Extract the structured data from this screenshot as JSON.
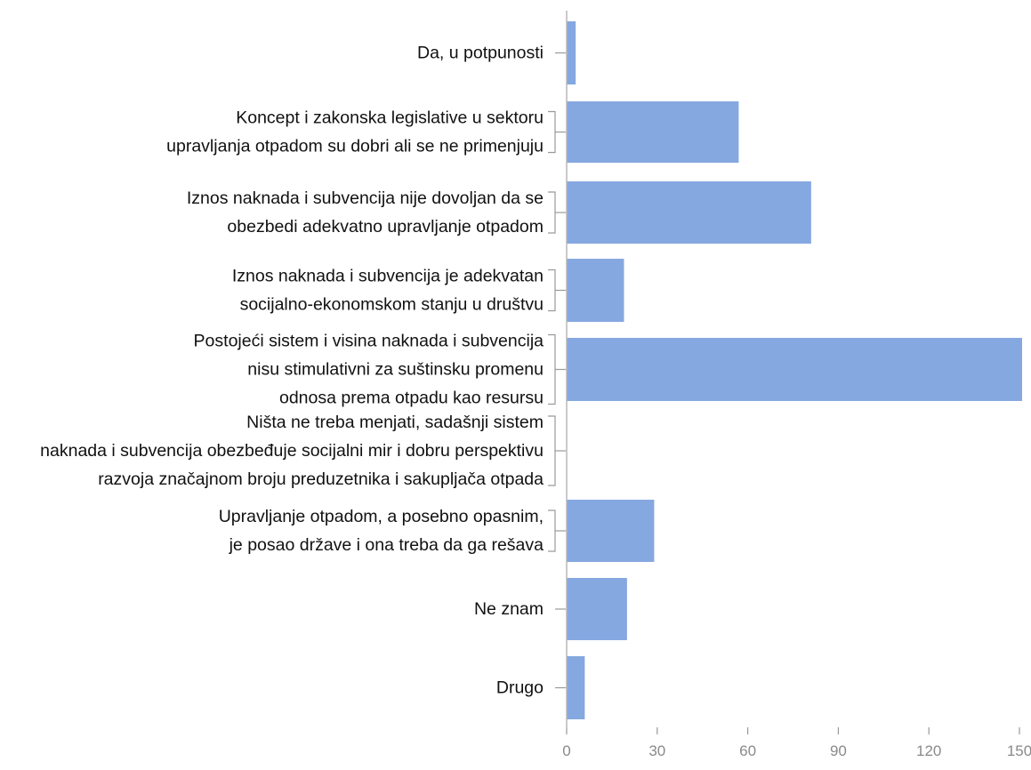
{
  "chart_data": {
    "type": "bar",
    "orientation": "horizontal",
    "title": "",
    "xlabel": "",
    "ylabel": "",
    "xlim": [
      0,
      150
    ],
    "x_ticks": [
      0,
      30,
      60,
      90,
      120,
      150
    ],
    "grid": false,
    "legend": "none",
    "bar_color": "#86a8e0",
    "categories": [
      [
        "Da, u potpunosti"
      ],
      [
        "Koncept i zakonska legislative u sektoru",
        "upravljanja otpadom su dobri ali se ne primenjuju"
      ],
      [
        "Iznos naknada i subvencija nije dovoljan da se",
        "obezbedi adekvatno upravljanje otpadom"
      ],
      [
        "Iznos naknada i subvencija je adekvatan",
        "socijalno-ekonomskom stanju u društvu"
      ],
      [
        "Postojeći sistem i visina naknada i subvencija",
        "nisu stimulativni za suštinsku promenu",
        "odnosa prema otpadu kao resursu"
      ],
      [
        "Ništa ne treba menjati, sadašnji sistem",
        "naknada i subvencija obezbeđuje socijalni mir i dobru perspektivu",
        "razvoja značajnom broju preduzetnika i sakupljača otpada"
      ],
      [
        "Upravljanje otpadom, a posebno opasnim,",
        "je posao države i ona treba da ga rešava"
      ],
      [
        "Ne znam"
      ],
      [
        "Drugo"
      ]
    ],
    "values": [
      3,
      57,
      81,
      19,
      152,
      0,
      29,
      20,
      6
    ]
  }
}
